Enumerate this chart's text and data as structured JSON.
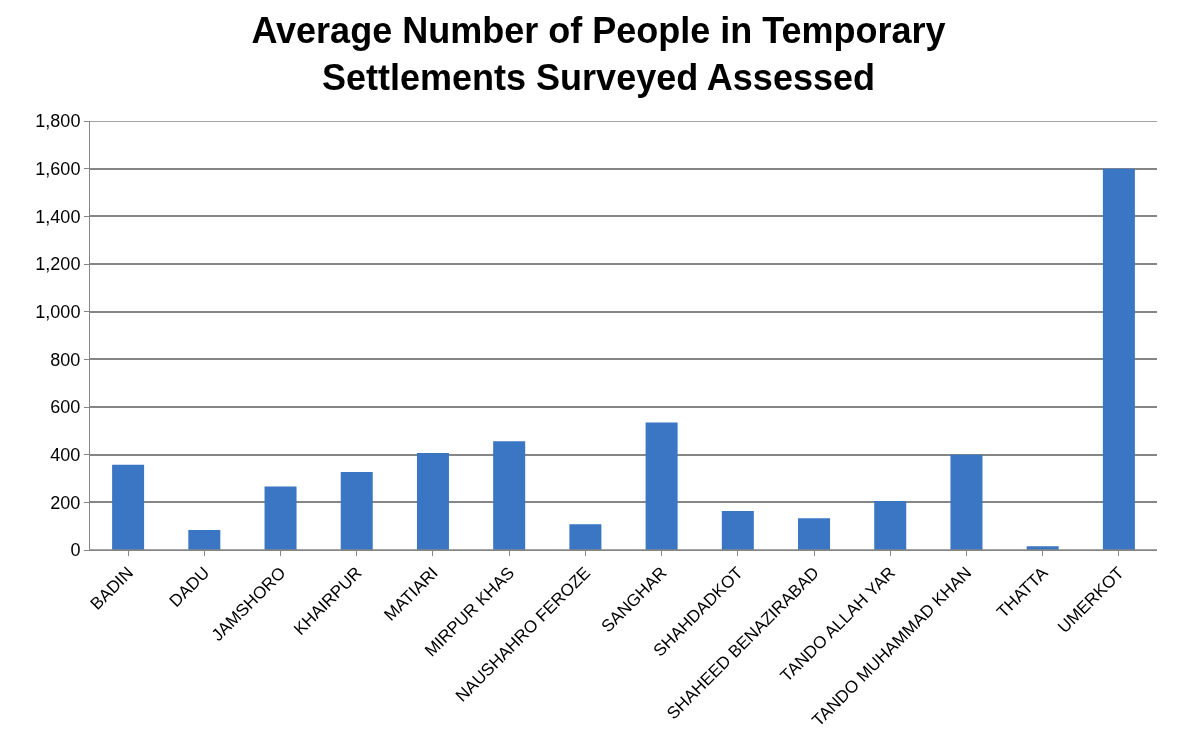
{
  "chart_data": {
    "type": "bar",
    "title": "Average Number of People in Temporary\nSettlements Surveyed Assessed",
    "categories": [
      "BADIN",
      "DADU",
      "JAMSHORO",
      "KHAIRPUR",
      "MATIARI",
      "MIRPUR KHAS",
      "NAUSHAHRO FEROZE",
      "SANGHAR",
      "SHAHDADKOT",
      "SHAHEED BENAZIRABAD",
      "TANDO ALLAH YAR",
      "TANDO MUHAMMAD KHAN",
      "THATTA",
      "UMERKOT"
    ],
    "values": [
      358,
      84,
      266,
      327,
      407,
      456,
      108,
      535,
      164,
      133,
      206,
      400,
      16,
      1600
    ],
    "color": "#3a76c4",
    "ylim": [
      0,
      1800
    ],
    "yticks": [
      {
        "value": 0,
        "label": "0"
      },
      {
        "value": 200,
        "label": "200"
      },
      {
        "value": 400,
        "label": "400"
      },
      {
        "value": 600,
        "label": "600"
      },
      {
        "value": 800,
        "label": "800"
      },
      {
        "value": 1000,
        "label": "1,000"
      },
      {
        "value": 1200,
        "label": "1,200"
      },
      {
        "value": 1400,
        "label": "1,400"
      },
      {
        "value": 1600,
        "label": "1,600"
      },
      {
        "value": 1800,
        "label": "1,800"
      }
    ],
    "grid": "y"
  }
}
